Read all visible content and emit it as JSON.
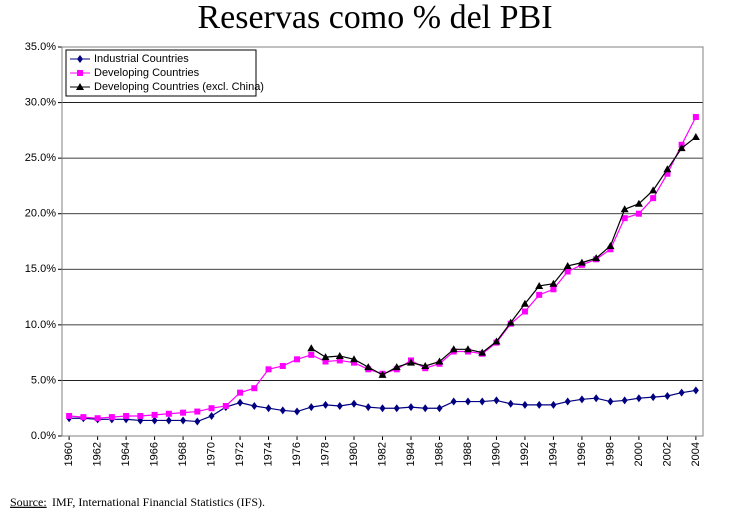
{
  "chart_data": {
    "type": "line",
    "title": "Reservas como % del PBI",
    "x": [
      1960,
      1961,
      1962,
      1963,
      1964,
      1965,
      1966,
      1967,
      1968,
      1969,
      1970,
      1971,
      1972,
      1973,
      1974,
      1975,
      1976,
      1977,
      1978,
      1979,
      1980,
      1981,
      1982,
      1983,
      1984,
      1985,
      1986,
      1987,
      1988,
      1989,
      1990,
      1991,
      1992,
      1993,
      1994,
      1995,
      1996,
      1997,
      1998,
      1999,
      2000,
      2001,
      2002,
      2003,
      2004
    ],
    "xlim": [
      1959.5,
      2004.5
    ],
    "xticks": [
      1960,
      1962,
      1964,
      1966,
      1968,
      1970,
      1972,
      1974,
      1976,
      1978,
      1980,
      1982,
      1984,
      1986,
      1988,
      1990,
      1992,
      1994,
      1996,
      1998,
      2000,
      2002,
      2004
    ],
    "ylim": [
      0,
      35
    ],
    "yticks": [
      {
        "value": 0,
        "label": "0.0%"
      },
      {
        "value": 5,
        "label": "5.0%"
      },
      {
        "value": 10,
        "label": "10.0%"
      },
      {
        "value": 15,
        "label": "15.0%"
      },
      {
        "value": 20,
        "label": "20.0%"
      },
      {
        "value": 25,
        "label": "25.0%"
      },
      {
        "value": 30,
        "label": "30.0%"
      },
      {
        "value": 35,
        "label": "35.0%"
      }
    ],
    "grid": true,
    "legend": "upper left",
    "series": [
      {
        "name": "Industrial Countries",
        "color": "#000080",
        "marker": "diamond",
        "values": [
          1.6,
          1.6,
          1.5,
          1.5,
          1.5,
          1.4,
          1.4,
          1.4,
          1.4,
          1.3,
          1.8,
          2.6,
          3.0,
          2.7,
          2.5,
          2.3,
          2.2,
          2.6,
          2.8,
          2.7,
          2.9,
          2.6,
          2.5,
          2.5,
          2.6,
          2.5,
          2.5,
          3.1,
          3.1,
          3.1,
          3.2,
          2.9,
          2.8,
          2.8,
          2.8,
          3.1,
          3.3,
          3.4,
          3.1,
          3.2,
          3.4,
          3.5,
          3.6,
          3.9,
          4.1
        ]
      },
      {
        "name": "Developing Countries",
        "color": "#ff00ff",
        "marker": "square",
        "values": [
          1.8,
          1.7,
          1.6,
          1.7,
          1.8,
          1.8,
          1.9,
          2.0,
          2.1,
          2.2,
          2.5,
          2.7,
          3.9,
          4.3,
          6.0,
          6.3,
          6.9,
          7.3,
          6.7,
          6.8,
          6.6,
          6.0,
          5.6,
          6.0,
          6.8,
          6.1,
          6.5,
          7.6,
          7.6,
          7.4,
          8.4,
          10.1,
          11.2,
          12.7,
          13.2,
          14.8,
          15.4,
          15.9,
          16.8,
          19.6,
          20.0,
          21.4,
          23.6,
          26.2,
          28.7
        ]
      },
      {
        "name": "Developing Countries (excl. China)",
        "color": "#000000",
        "marker": "triangle",
        "values": [
          null,
          null,
          null,
          null,
          null,
          null,
          null,
          null,
          null,
          null,
          null,
          null,
          null,
          null,
          null,
          null,
          null,
          7.9,
          7.1,
          7.2,
          6.9,
          6.2,
          5.5,
          6.2,
          6.6,
          6.3,
          6.7,
          7.8,
          7.8,
          7.5,
          8.5,
          10.2,
          11.9,
          13.5,
          13.7,
          15.3,
          15.6,
          16.0,
          17.1,
          20.4,
          20.9,
          22.1,
          24.0,
          25.9,
          26.9
        ]
      }
    ]
  },
  "source": {
    "label": "Source:",
    "text": "IMF, International Financial Statistics (IFS)."
  }
}
